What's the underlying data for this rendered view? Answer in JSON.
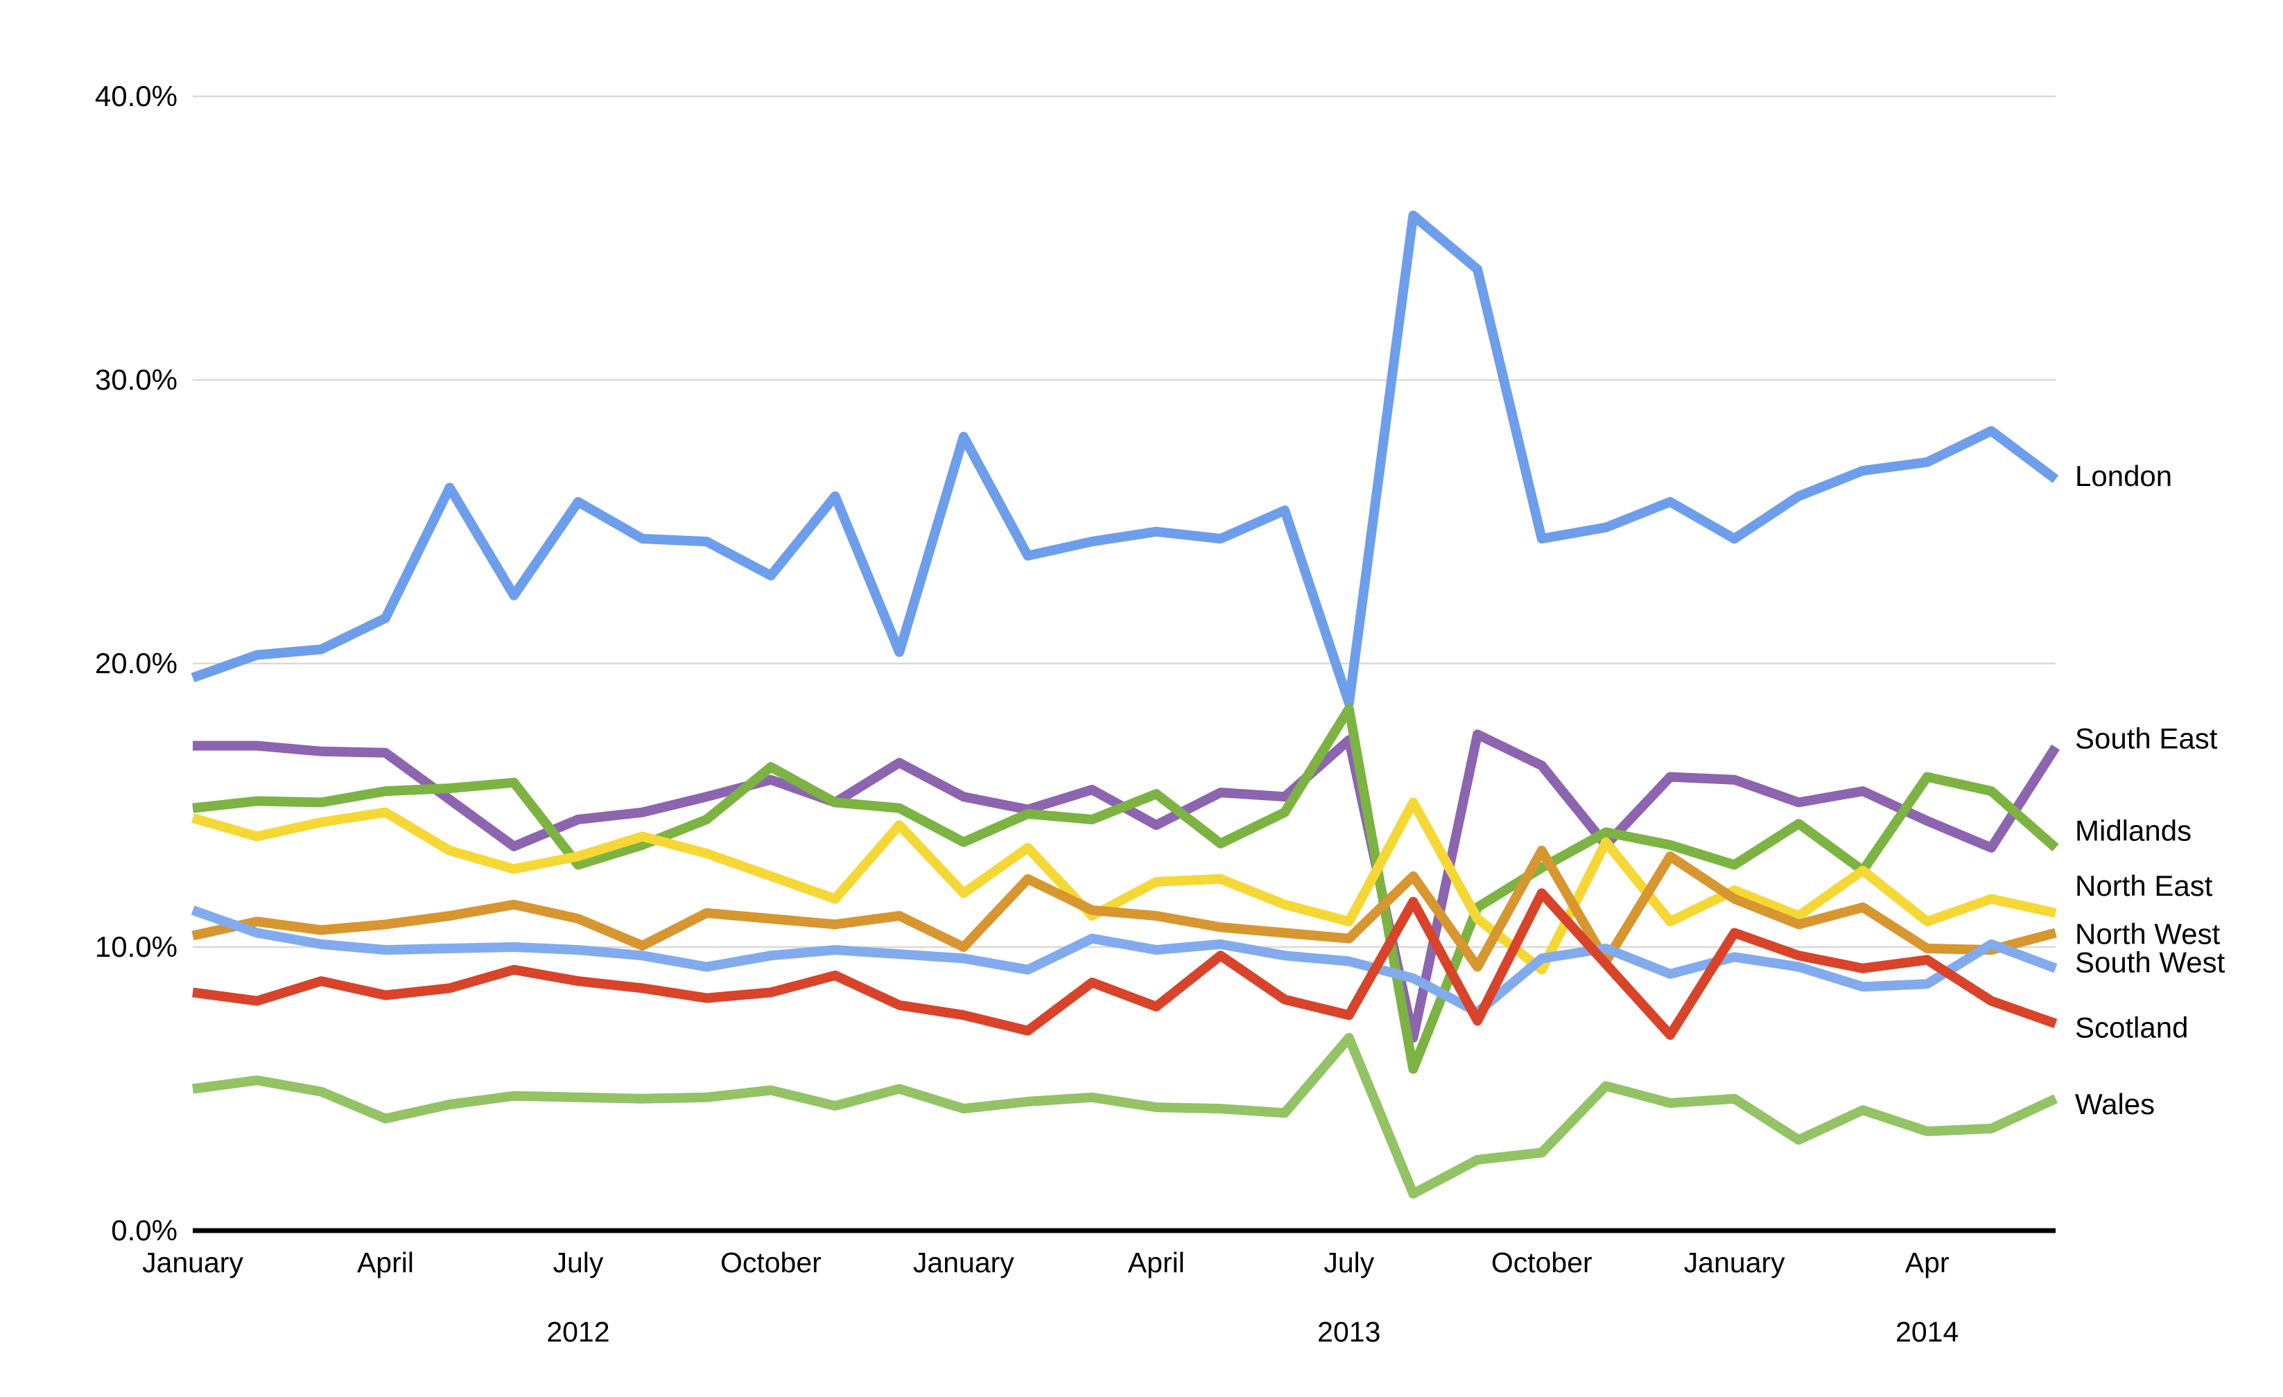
{
  "chart_data": {
    "type": "line",
    "title": "",
    "x": [
      "Jan 2012",
      "Feb 2012",
      "Mar 2012",
      "Apr 2012",
      "May 2012",
      "Jun 2012",
      "Jul 2012",
      "Aug 2012",
      "Sep 2012",
      "Oct 2012",
      "Nov 2012",
      "Dec 2012",
      "Jan 2013",
      "Feb 2013",
      "Mar 2013",
      "Apr 2013",
      "May 2013",
      "Jun 2013",
      "Jul 2013",
      "Aug 2013",
      "Sep 2013",
      "Oct 2013",
      "Nov 2013",
      "Dec 2013",
      "Jan 2014",
      "Feb 2014",
      "Mar 2014",
      "Apr 2014",
      "May 2014",
      "Jun 2014"
    ],
    "x_tick_labels": [
      {
        "label": "January",
        "month_index": 0
      },
      {
        "label": "April",
        "month_index": 3
      },
      {
        "label": "July",
        "month_index": 6
      },
      {
        "label": "October",
        "month_index": 9
      },
      {
        "label": "January",
        "month_index": 12
      },
      {
        "label": "April",
        "month_index": 15
      },
      {
        "label": "July",
        "month_index": 18
      },
      {
        "label": "October",
        "month_index": 21
      },
      {
        "label": "January",
        "month_index": 24
      },
      {
        "label": "Apr",
        "month_index": 27
      }
    ],
    "year_labels": [
      {
        "label": "2012",
        "month_index": 6
      },
      {
        "label": "2013",
        "month_index": 18
      },
      {
        "label": "2014",
        "month_index": 27
      }
    ],
    "ylim": [
      0,
      40
    ],
    "y_ticks": [
      {
        "label": "0.0%",
        "value": 0
      },
      {
        "label": "10.0%",
        "value": 10
      },
      {
        "label": "20.0%",
        "value": 20
      },
      {
        "label": "30.0%",
        "value": 30
      },
      {
        "label": "40.0%",
        "value": 40
      }
    ],
    "grid": true,
    "legend_position": "right-end-labels",
    "grid_color": "#d9d9d9",
    "axis_color": "#000000",
    "series": [
      {
        "name": "London",
        "color": "#6d9eeb",
        "label_value": 26.6,
        "values": [
          19.5,
          20.3,
          20.5,
          21.6,
          26.2,
          22.4,
          25.7,
          24.4,
          24.3,
          23.1,
          25.9,
          20.4,
          28.0,
          23.8,
          24.3,
          24.65,
          24.4,
          25.4,
          18.6,
          35.8,
          33.9,
          24.4,
          24.8,
          25.7,
          24.4,
          25.9,
          26.8,
          27.1,
          28.2,
          26.5
        ]
      },
      {
        "name": "South East",
        "color": "#8d64b0",
        "label_value": 17.35,
        "values": [
          17.1,
          17.1,
          16.9,
          16.85,
          15.2,
          13.55,
          14.5,
          14.75,
          15.3,
          15.9,
          15.1,
          16.5,
          15.3,
          14.85,
          15.55,
          14.3,
          15.45,
          15.3,
          17.3,
          6.8,
          17.5,
          16.4,
          13.6,
          16.0,
          15.9,
          15.1,
          15.5,
          14.45,
          13.5,
          17.05
        ]
      },
      {
        "name": "Midlands",
        "color": "#7cb342",
        "label_value": 14.1,
        "values": [
          14.9,
          15.15,
          15.1,
          15.5,
          15.6,
          15.8,
          12.9,
          13.6,
          14.5,
          16.35,
          15.1,
          14.9,
          13.7,
          14.7,
          14.5,
          15.4,
          13.65,
          14.75,
          18.4,
          5.7,
          11.4,
          12.8,
          14.05,
          13.6,
          12.9,
          14.35,
          12.7,
          16.0,
          15.5,
          13.5
        ]
      },
      {
        "name": "North East",
        "color": "#f5d836",
        "label_value": 12.15,
        "values": [
          14.55,
          13.9,
          14.4,
          14.75,
          13.4,
          12.75,
          13.2,
          13.9,
          13.3,
          12.5,
          11.7,
          14.3,
          11.9,
          13.5,
          11.1,
          12.3,
          12.4,
          11.5,
          10.9,
          15.1,
          11.0,
          9.2,
          13.7,
          10.9,
          12.0,
          11.1,
          12.7,
          10.9,
          11.7,
          11.2
        ]
      },
      {
        "name": "North West",
        "color": "#d7962f",
        "label_value": 10.45,
        "values": [
          10.4,
          10.9,
          10.6,
          10.8,
          11.1,
          11.5,
          11.0,
          10.05,
          11.2,
          11.0,
          10.8,
          11.1,
          10.0,
          12.4,
          11.3,
          11.1,
          10.7,
          10.5,
          10.3,
          12.5,
          9.3,
          13.4,
          9.5,
          13.2,
          11.7,
          10.8,
          11.4,
          9.95,
          9.9,
          10.5
        ]
      },
      {
        "name": "South West",
        "color": "#82abee",
        "label_value": 9.45,
        "values": [
          11.3,
          10.5,
          10.1,
          9.9,
          9.95,
          10.0,
          9.9,
          9.7,
          9.3,
          9.7,
          9.9,
          9.75,
          9.6,
          9.2,
          10.3,
          9.9,
          10.1,
          9.7,
          9.5,
          8.9,
          7.7,
          9.6,
          9.95,
          9.05,
          9.65,
          9.3,
          8.6,
          8.7,
          10.1,
          9.25
        ]
      },
      {
        "name": "Scotland",
        "color": "#d8432a",
        "label_value": 7.15,
        "values": [
          8.4,
          8.1,
          8.8,
          8.3,
          8.55,
          9.2,
          8.8,
          8.55,
          8.2,
          8.4,
          9.0,
          7.95,
          7.6,
          7.05,
          8.75,
          7.9,
          9.7,
          8.15,
          7.6,
          11.6,
          7.4,
          11.9,
          9.4,
          6.9,
          10.5,
          9.7,
          9.25,
          9.55,
          8.1,
          7.3
        ]
      },
      {
        "name": "Wales",
        "color": "#93c364",
        "label_value": 4.45,
        "values": [
          5.0,
          5.3,
          4.9,
          3.95,
          4.45,
          4.75,
          4.7,
          4.65,
          4.7,
          4.95,
          4.4,
          5.0,
          4.3,
          4.55,
          4.7,
          4.35,
          4.3,
          4.15,
          6.8,
          1.3,
          2.5,
          2.75,
          5.1,
          4.5,
          4.65,
          3.2,
          4.25,
          3.5,
          3.6,
          4.65
        ]
      }
    ]
  }
}
